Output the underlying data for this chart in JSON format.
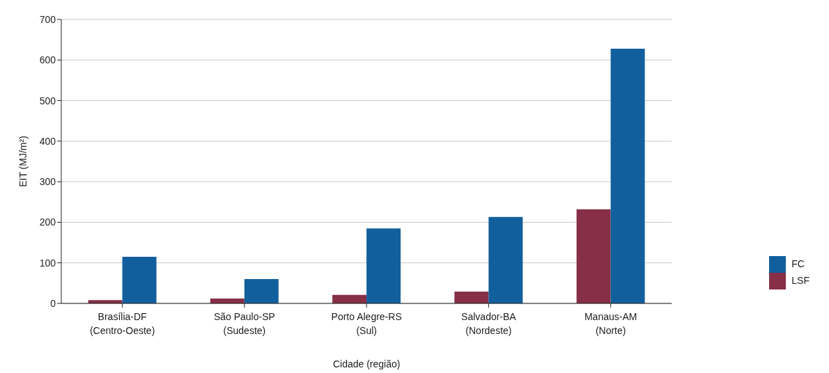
{
  "chart_data": {
    "type": "bar",
    "xlabel": "Cidade (região)",
    "ylabel": "EIT (MJ/m²)",
    "categories": [
      "Brasília-DF\n(Centro-Oeste)",
      "São Paulo-SP\n(Sudeste)",
      "Porto Alegre-RS\n(Sul)",
      "Salvador-BA\n(Nordeste)",
      "Manaus-AM\n(Norte)"
    ],
    "series": [
      {
        "name": "LSF",
        "color": "#862f47",
        "values": [
          8,
          12,
          21,
          29,
          232
        ]
      },
      {
        "name": "FC",
        "color": "#125f9e",
        "values": [
          115,
          60,
          185,
          213,
          628
        ]
      }
    ],
    "ylim": [
      0,
      700
    ],
    "yticks": [
      0,
      100,
      200,
      300,
      400,
      500,
      600,
      700
    ],
    "grid": "y",
    "legend": "right"
  }
}
